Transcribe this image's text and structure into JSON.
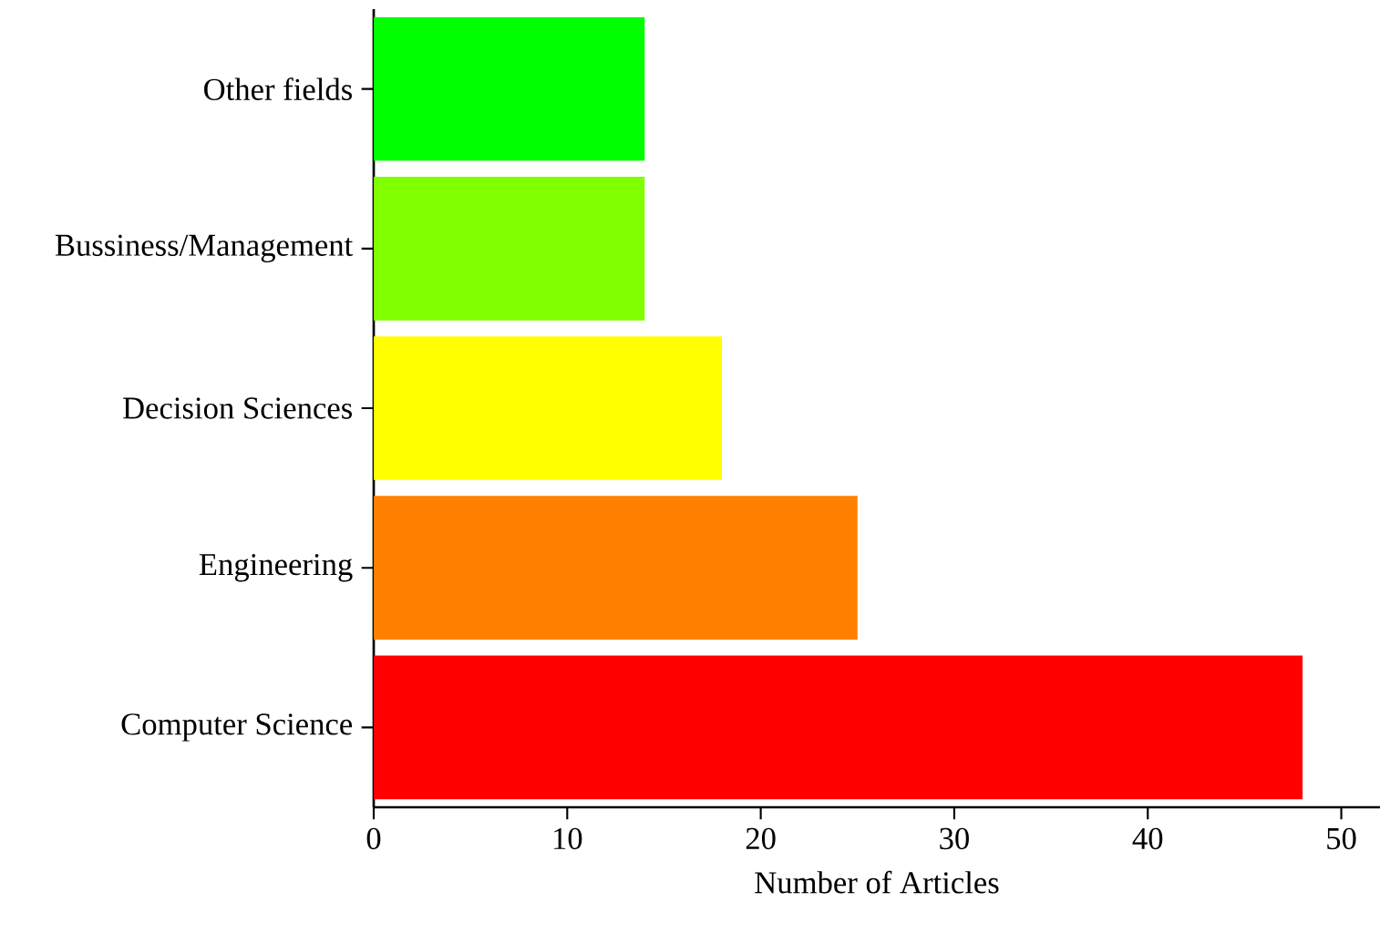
{
  "chart_data": {
    "type": "bar",
    "orientation": "horizontal",
    "xlabel": "Number of Articles",
    "categories": [
      "Other fields",
      "Bussiness/Management",
      "Decision Sciences",
      "Engineering",
      "Computer Science"
    ],
    "values": [
      14,
      14,
      18,
      25,
      48
    ],
    "colors": [
      "#00ff00",
      "#80ff00",
      "#ffff00",
      "#ff8000",
      "#ff0000"
    ],
    "xlim": [
      0,
      52
    ],
    "xticks": [
      0,
      10,
      20,
      30,
      40,
      50
    ]
  }
}
